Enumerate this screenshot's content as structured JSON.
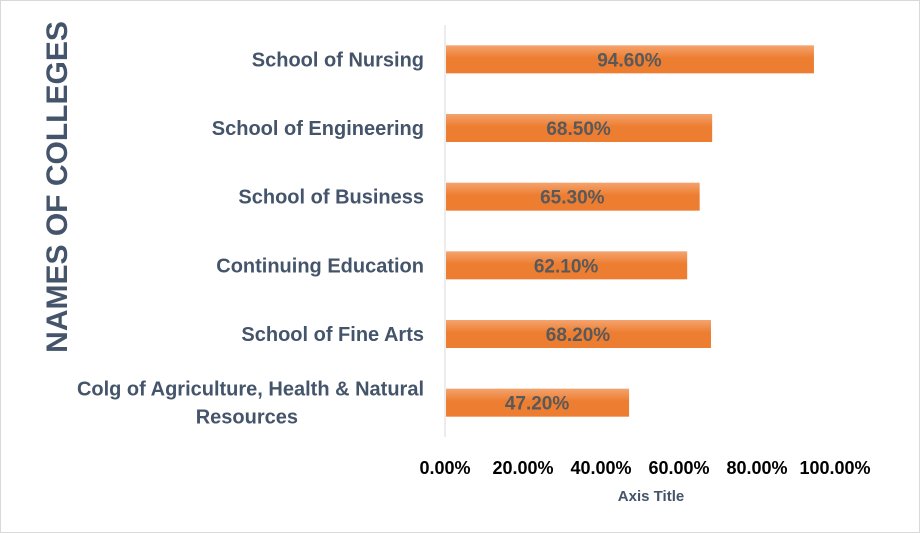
{
  "chart_data": {
    "type": "bar",
    "orientation": "horizontal",
    "categories": [
      "School of Nursing",
      "School of Engineering",
      "School of Business",
      "Continuing Education",
      "School of Fine Arts",
      "Colg of Agriculture, Health & Natural Resources"
    ],
    "category_lines": [
      [
        "School of Nursing"
      ],
      [
        "School of Engineering"
      ],
      [
        "School of Business"
      ],
      [
        "Continuing Education"
      ],
      [
        "School of Fine Arts"
      ],
      [
        "Colg of Agriculture, Health & Natural",
        "Resources"
      ]
    ],
    "values": [
      94.6,
      68.5,
      65.3,
      62.1,
      68.2,
      47.2
    ],
    "value_labels": [
      "94.60%",
      "68.50%",
      "65.30%",
      "62.10%",
      "68.20%",
      "47.20%"
    ],
    "xlim": [
      0,
      100
    ],
    "xticks": [
      "0.00%",
      "20.00%",
      "40.00%",
      "60.00%",
      "80.00%",
      "100.00%"
    ],
    "xlabel": "Axis Title",
    "ylabel": "NAMES OF COLLEGES",
    "title": "",
    "legend": "none",
    "grid": false
  },
  "colors": {
    "bar_fill": "#ed7d31",
    "bar_top": "#f4a46f",
    "axis_line": "#d9d9d9"
  }
}
